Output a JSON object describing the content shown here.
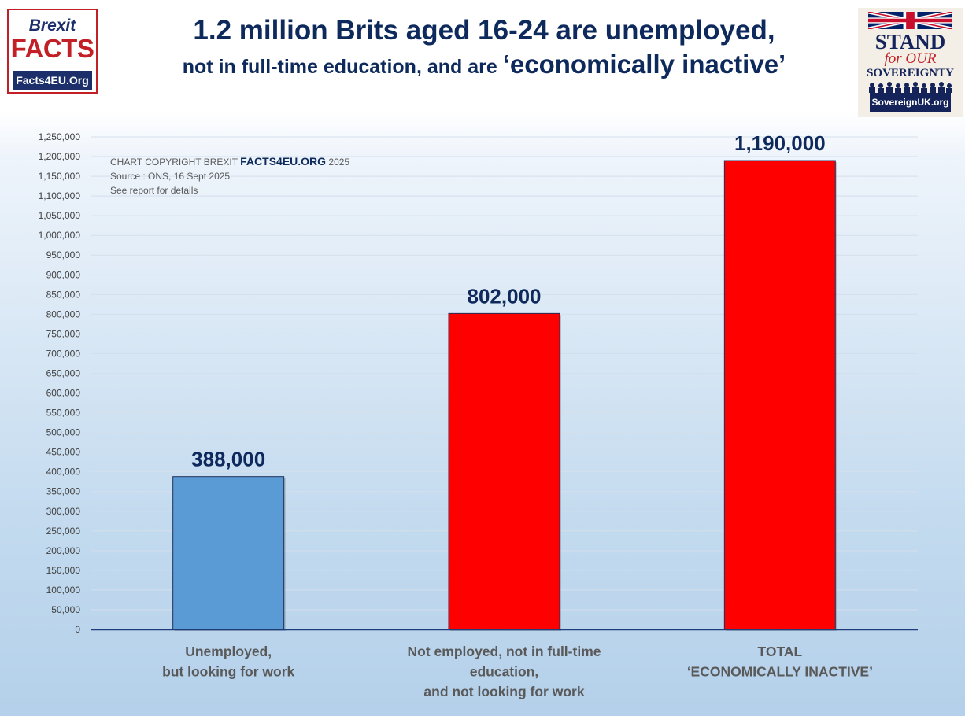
{
  "header": {
    "title_line1": "1.2 million Brits aged 16-24 are unemployed,",
    "title_line2_a": "not in full-time education, and are ",
    "title_line2_b": "‘economically inactive’"
  },
  "logo_left": {
    "line1": "Brexit",
    "line2": "FACTS",
    "line3": "Facts4EU.Org"
  },
  "logo_right": {
    "line1": "STAND",
    "line2": "for OUR",
    "line3": "SOVEREIGNTY",
    "line4": "SovereignUK.org"
  },
  "note": {
    "copyright_prefix": "CHART COPYRIGHT BREXIT ",
    "copyright_brand": "FACTS4EU.ORG",
    "copyright_year": " 2025",
    "source": "Source : ONS, 16 Sept 2025",
    "details": "See report for details"
  },
  "colors": {
    "title": "#0e2a5c",
    "bar_blue": "#5b9bd5",
    "bar_red": "#ff0000",
    "axis": "#1f3d7a"
  },
  "chart_data": {
    "type": "bar",
    "categories": [
      [
        "Unemployed,",
        "but looking for work"
      ],
      [
        "Not employed, not in full-time",
        "education,",
        "and not looking for work"
      ],
      [
        "TOTAL",
        "‘ECONOMICALLY INACTIVE’"
      ]
    ],
    "values": [
      388000,
      802000,
      1190000
    ],
    "data_labels": [
      "388,000",
      "802,000",
      "1,190,000"
    ],
    "bar_colors": [
      "#5b9bd5",
      "#ff0000",
      "#ff0000"
    ],
    "ylim": [
      0,
      1250000
    ],
    "ytick_step": 50000,
    "grid": true,
    "legend": "none"
  }
}
